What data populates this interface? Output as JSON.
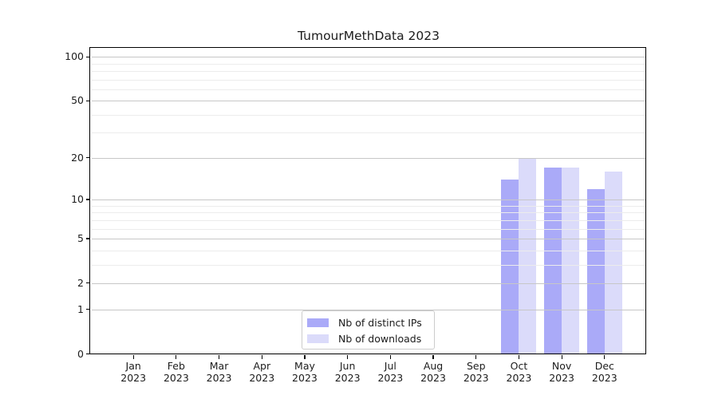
{
  "chart_data": {
    "type": "bar",
    "title": "TumourMethData 2023",
    "categories": [
      {
        "month": "Jan",
        "year": "2023"
      },
      {
        "month": "Feb",
        "year": "2023"
      },
      {
        "month": "Mar",
        "year": "2023"
      },
      {
        "month": "Apr",
        "year": "2023"
      },
      {
        "month": "May",
        "year": "2023"
      },
      {
        "month": "Jun",
        "year": "2023"
      },
      {
        "month": "Jul",
        "year": "2023"
      },
      {
        "month": "Aug",
        "year": "2023"
      },
      {
        "month": "Sep",
        "year": "2023"
      },
      {
        "month": "Oct",
        "year": "2023"
      },
      {
        "month": "Nov",
        "year": "2023"
      },
      {
        "month": "Dec",
        "year": "2023"
      }
    ],
    "series": [
      {
        "name": "Nb of distinct IPs",
        "color": "#aaaaf8",
        "values": [
          null,
          null,
          null,
          null,
          null,
          null,
          null,
          null,
          null,
          14,
          17,
          12
        ]
      },
      {
        "name": "Nb of downloads",
        "color": "#dbdbfa",
        "values": [
          null,
          null,
          null,
          null,
          null,
          null,
          null,
          null,
          null,
          20,
          17,
          16
        ]
      }
    ],
    "y_scale": "log1p",
    "ylim": [
      0,
      115
    ],
    "y_major_ticks": [
      0,
      1,
      2,
      5,
      10,
      20,
      50,
      100
    ],
    "y_minor_ticks": [
      3,
      4,
      6,
      7,
      8,
      9,
      30,
      40,
      60,
      70,
      80,
      90
    ],
    "xlabel": "",
    "ylabel": "",
    "grid": "horizontal",
    "legend_position": "inside-bottom-center"
  },
  "style": {
    "background": "#ffffff",
    "text_color": "#1c1c1c",
    "spine_color": "#000000",
    "major_grid_color": "#c7c7c7",
    "minor_grid_color": "#ececec",
    "legend_border_color": "#cccccc"
  }
}
